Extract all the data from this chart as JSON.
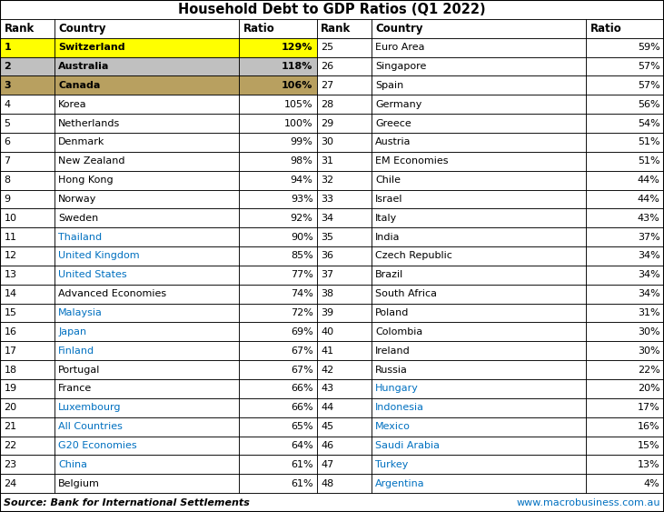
{
  "title": "Household Debt to GDP Ratios (Q1 2022)",
  "headers": [
    "Rank",
    "Country",
    "Ratio",
    "Rank",
    "Country",
    "Ratio"
  ],
  "left_data": [
    [
      "1",
      "Switzerland",
      "129%"
    ],
    [
      "2",
      "Australia",
      "118%"
    ],
    [
      "3",
      "Canada",
      "106%"
    ],
    [
      "4",
      "Korea",
      "105%"
    ],
    [
      "5",
      "Netherlands",
      "100%"
    ],
    [
      "6",
      "Denmark",
      "99%"
    ],
    [
      "7",
      "New Zealand",
      "98%"
    ],
    [
      "8",
      "Hong Kong",
      "94%"
    ],
    [
      "9",
      "Norway",
      "93%"
    ],
    [
      "10",
      "Sweden",
      "92%"
    ],
    [
      "11",
      "Thailand",
      "90%"
    ],
    [
      "12",
      "United Kingdom",
      "85%"
    ],
    [
      "13",
      "United States",
      "77%"
    ],
    [
      "14",
      "Advanced Economies",
      "74%"
    ],
    [
      "15",
      "Malaysia",
      "72%"
    ],
    [
      "16",
      "Japan",
      "69%"
    ],
    [
      "17",
      "Finland",
      "67%"
    ],
    [
      "18",
      "Portugal",
      "67%"
    ],
    [
      "19",
      "France",
      "66%"
    ],
    [
      "20",
      "Luxembourg",
      "66%"
    ],
    [
      "21",
      "All Countries",
      "65%"
    ],
    [
      "22",
      "G20 Economies",
      "64%"
    ],
    [
      "23",
      "China",
      "61%"
    ],
    [
      "24",
      "Belgium",
      "61%"
    ]
  ],
  "right_data": [
    [
      "25",
      "Euro Area",
      "59%"
    ],
    [
      "26",
      "Singapore",
      "57%"
    ],
    [
      "27",
      "Spain",
      "57%"
    ],
    [
      "28",
      "Germany",
      "56%"
    ],
    [
      "29",
      "Greece",
      "54%"
    ],
    [
      "30",
      "Austria",
      "51%"
    ],
    [
      "31",
      "EM Economies",
      "51%"
    ],
    [
      "32",
      "Chile",
      "44%"
    ],
    [
      "33",
      "Israel",
      "44%"
    ],
    [
      "34",
      "Italy",
      "43%"
    ],
    [
      "35",
      "India",
      "37%"
    ],
    [
      "36",
      "Czech Republic",
      "34%"
    ],
    [
      "37",
      "Brazil",
      "34%"
    ],
    [
      "38",
      "South Africa",
      "34%"
    ],
    [
      "39",
      "Poland",
      "31%"
    ],
    [
      "40",
      "Colombia",
      "30%"
    ],
    [
      "41",
      "Ireland",
      "30%"
    ],
    [
      "42",
      "Russia",
      "22%"
    ],
    [
      "43",
      "Hungary",
      "20%"
    ],
    [
      "44",
      "Indonesia",
      "17%"
    ],
    [
      "45",
      "Mexico",
      "16%"
    ],
    [
      "46",
      "Saudi Arabia",
      "15%"
    ],
    [
      "47",
      "Turkey",
      "13%"
    ],
    [
      "48",
      "Argentina",
      "4%"
    ]
  ],
  "row1_bg": "#FFFF00",
  "row2_bg": "#C0C0C0",
  "row3_bg": "#B8A060",
  "source_left": "Source: Bank for International Settlements",
  "source_right": "www.macrobusiness.com.au",
  "blue_countries_left": [
    "Thailand",
    "United Kingdom",
    "United States",
    "Malaysia",
    "Japan",
    "Finland",
    "Luxembourg",
    "All Countries",
    "G20 Economies",
    "China"
  ],
  "blue_countries_right": [
    "Hungary",
    "Indonesia",
    "Mexico",
    "Saudi Arabia",
    "Turkey",
    "Argentina"
  ],
  "bold_countries_left": [
    "Switzerland",
    "Australia",
    "Canada"
  ]
}
